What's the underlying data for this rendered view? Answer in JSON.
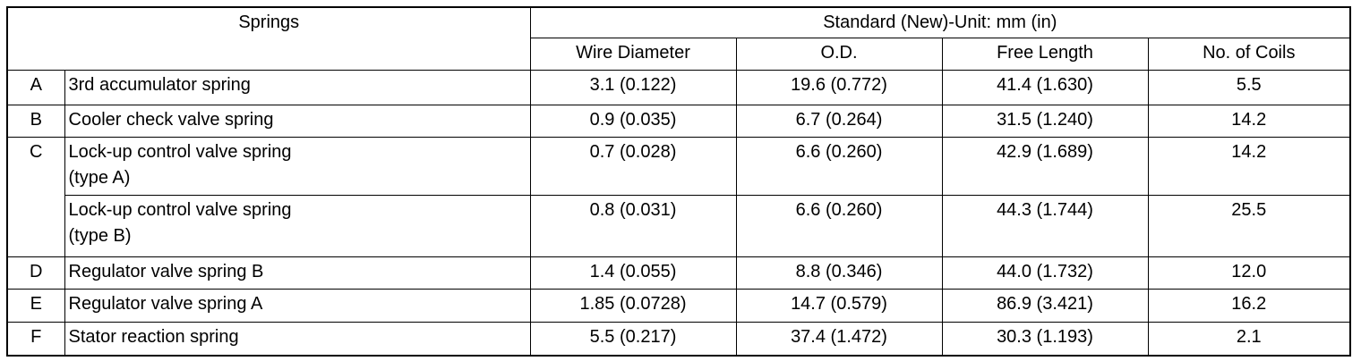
{
  "header": {
    "springs": "Springs",
    "standard": "Standard (New)-Unit: mm (in)",
    "columns": [
      "Wire Diameter",
      "O.D.",
      "Free Length",
      "No. of Coils"
    ]
  },
  "rows": [
    {
      "letter": "A",
      "name": [
        "3rd accumulator spring"
      ],
      "values": [
        "3.1 (0.122)",
        "19.6 (0.772)",
        "41.4 (1.630)",
        "5.5"
      ]
    },
    {
      "letter": "B",
      "name": [
        "Cooler check valve spring"
      ],
      "values": [
        "0.9 (0.035)",
        "6.7 (0.264)",
        "31.5 (1.240)",
        "14.2"
      ]
    },
    {
      "letter": "C",
      "name": [
        "Lock-up control valve spring",
        "(type A)"
      ],
      "values": [
        "0.7 (0.028)",
        "6.6 (0.260)",
        "42.9 (1.689)",
        "14.2"
      ]
    },
    {
      "name": [
        "Lock-up control valve spring",
        "(type B)"
      ],
      "values": [
        "0.8 (0.031)",
        "6.6 (0.260)",
        "44.3 (1.744)",
        "25.5"
      ]
    },
    {
      "letter": "D",
      "name": [
        "Regulator valve spring B"
      ],
      "values": [
        "1.4 (0.055)",
        "8.8 (0.346)",
        "44.0 (1.732)",
        "12.0"
      ]
    },
    {
      "letter": "E",
      "name": [
        "Regulator valve spring A"
      ],
      "values": [
        "1.85 (0.0728)",
        "14.7 (0.579)",
        "86.9 (3.421)",
        "16.2"
      ]
    },
    {
      "letter": "F",
      "name": [
        "Stator reaction spring"
      ],
      "values": [
        "5.5 (0.217)",
        "37.4 (1.472)",
        "30.3 (1.193)",
        "2.1"
      ]
    }
  ]
}
